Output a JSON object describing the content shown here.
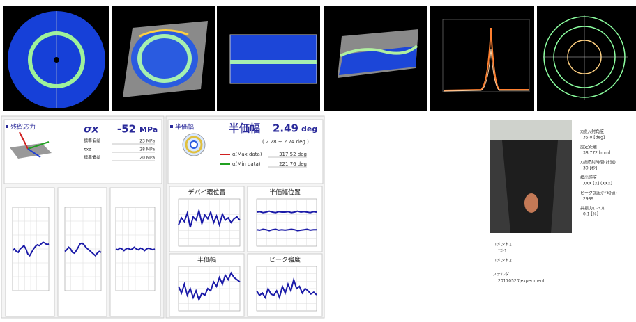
{
  "stress": {
    "panel_title": "残留応力",
    "symbol": "σx",
    "value": -52,
    "unit": "MPa",
    "rows": [
      {
        "label": "標準偏差",
        "value": "23 MPa"
      },
      {
        "label": "τxz",
        "value": "28 MPa"
      },
      {
        "label": "標準偏差",
        "value": "20 MPa"
      }
    ]
  },
  "fwhm": {
    "panel_title": "半価幅",
    "label": "半価幅",
    "value": 2.49,
    "unit": "deg",
    "range": "( 2.28 ~ 2.74 deg )",
    "rows": [
      {
        "label": "α(Max data)",
        "value": "317.52 deg"
      },
      {
        "label": "α(Min data)",
        "value": "221.76 deg"
      }
    ]
  },
  "graphs": [
    {
      "ylim": [
        0,
        100
      ],
      "series": [
        {
          "values": [
            48,
            50,
            47,
            46,
            50,
            52,
            54,
            50,
            44,
            42,
            46,
            50,
            53,
            55,
            54,
            56,
            58,
            57,
            55,
            56
          ]
        }
      ]
    },
    {
      "ylim": [
        0,
        100
      ],
      "series": [
        {
          "values": [
            47,
            49,
            52,
            50,
            46,
            45,
            48,
            52,
            56,
            57,
            55,
            52,
            50,
            48,
            46,
            44,
            42,
            45,
            47,
            46
          ]
        }
      ]
    },
    {
      "ylim": [
        0,
        100
      ],
      "series": [
        {
          "values": [
            50,
            49,
            51,
            50,
            48,
            50,
            51,
            49,
            50,
            52,
            50,
            49,
            51,
            50,
            48,
            50,
            51,
            50,
            49,
            50
          ]
        }
      ]
    },
    {
      "title": "デバイ環位置",
      "ylim": [
        0,
        100
      ],
      "series": [
        {
          "values": [
            45,
            60,
            52,
            70,
            40,
            62,
            55,
            75,
            48,
            66,
            58,
            72,
            50,
            64,
            45,
            68,
            55,
            60,
            50,
            58,
            62,
            55
          ]
        }
      ]
    },
    {
      "title": "半価幅位置",
      "ylim": [
        0,
        100
      ],
      "series": [
        {
          "values": [
            72,
            73,
            71,
            72,
            74,
            72,
            71,
            73,
            72,
            72,
            73,
            71,
            72,
            74,
            72,
            73,
            72,
            71,
            73,
            72
          ]
        },
        {
          "values": [
            35,
            34,
            36,
            35,
            33,
            35,
            36,
            34,
            35,
            34,
            35,
            36,
            35,
            33,
            34,
            35,
            36,
            34,
            35,
            35
          ]
        }
      ]
    },
    {
      "title": "半価幅",
      "ylim": [
        0,
        100
      ],
      "series": [
        {
          "values": [
            55,
            40,
            60,
            35,
            50,
            30,
            45,
            25,
            40,
            35,
            50,
            45,
            65,
            55,
            75,
            60,
            80,
            70,
            85,
            75,
            70,
            65
          ]
        }
      ]
    },
    {
      "title": "ピーク強度",
      "ylim": [
        0,
        100
      ],
      "series": [
        {
          "values": [
            45,
            35,
            40,
            30,
            50,
            38,
            35,
            45,
            30,
            55,
            40,
            60,
            45,
            70,
            50,
            55,
            40,
            50,
            45,
            38,
            42,
            36
          ]
        }
      ]
    }
  ],
  "info": {
    "items": [
      {
        "label": "X線入射角度",
        "value": "35.0 [deg]"
      },
      {
        "label": "設定距離",
        "value": "38.772 [mm]"
      },
      {
        "label": "X線照射時間(計測)",
        "value": "30 [秒]"
      },
      {
        "label": "検出感度",
        "value": "XXX [X] (XXX)"
      },
      {
        "label": "ピーク強度(平均値)",
        "value": "2989"
      },
      {
        "label": "共振力レベル",
        "value": "0.1 [%]"
      }
    ],
    "comment1_label": "コメント1",
    "comment1": "ﾃｽﾄ1",
    "comment2_label": "コメント2",
    "folder_label": "フォルダ",
    "folder": "20170523\\experiment"
  }
}
